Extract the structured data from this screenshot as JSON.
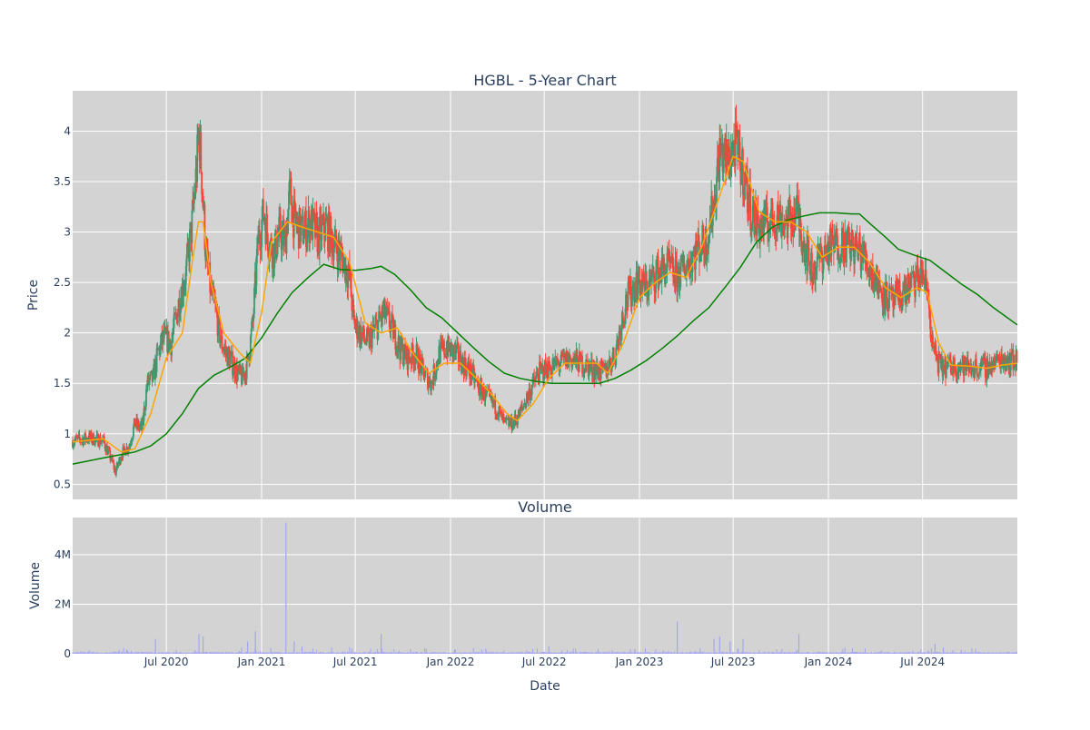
{
  "chart_data": [
    {
      "type": "candlestick",
      "title": "HGBL - 5-Year Chart",
      "xlabel": "",
      "ylabel": "Price",
      "ylim": [
        0.35,
        4.4
      ],
      "x_range": [
        "2020-01-02",
        "2024-12-31"
      ],
      "y_ticks": [
        "0.5",
        "1",
        "1.5",
        "2",
        "2.5",
        "3",
        "3.5",
        "4"
      ],
      "y_tick_values": [
        0.5,
        1,
        1.5,
        2,
        2.5,
        3,
        3.5,
        4
      ],
      "grid": true,
      "legend": "none",
      "colors": {
        "plot_bg": "#d3d3d3",
        "up": "#3d9970",
        "down": "#ff4136",
        "ma_short": "#ffa500",
        "ma_long": "#008000",
        "grid": "#ffffff"
      },
      "close_path": [
        [
          "2020-01-02",
          0.93
        ],
        [
          "2020-02-01",
          0.96
        ],
        [
          "2020-03-01",
          0.93
        ],
        [
          "2020-03-16",
          0.75
        ],
        [
          "2020-03-25",
          0.62
        ],
        [
          "2020-04-05",
          0.8
        ],
        [
          "2020-04-20",
          0.88
        ],
        [
          "2020-05-01",
          1.1
        ],
        [
          "2020-05-15",
          1.05
        ],
        [
          "2020-05-25",
          1.5
        ],
        [
          "2020-06-05",
          1.55
        ],
        [
          "2020-06-15",
          1.8
        ],
        [
          "2020-06-25",
          1.95
        ],
        [
          "2020-07-10",
          1.9
        ],
        [
          "2020-07-25",
          2.3
        ],
        [
          "2020-08-08",
          2.6
        ],
        [
          "2020-08-20",
          3.1
        ],
        [
          "2020-08-28",
          3.6
        ],
        [
          "2020-09-02",
          4.0
        ],
        [
          "2020-09-08",
          3.5
        ],
        [
          "2020-09-15",
          2.8
        ],
        [
          "2020-09-25",
          2.4
        ],
        [
          "2020-10-05",
          2.2
        ],
        [
          "2020-10-15",
          1.9
        ],
        [
          "2020-10-25",
          1.8
        ],
        [
          "2020-11-05",
          1.7
        ],
        [
          "2020-11-15",
          1.6
        ],
        [
          "2020-11-25",
          1.55
        ],
        [
          "2020-12-05",
          1.7
        ],
        [
          "2020-12-15",
          2.1
        ],
        [
          "2020-12-25",
          2.9
        ],
        [
          "2021-01-05",
          3.2
        ],
        [
          "2021-01-15",
          2.9
        ],
        [
          "2021-01-25",
          2.8
        ],
        [
          "2021-02-05",
          3.0
        ],
        [
          "2021-02-15",
          2.9
        ],
        [
          "2021-02-25",
          3.4
        ],
        [
          "2021-03-05",
          3.1
        ],
        [
          "2021-03-20",
          3.0
        ],
        [
          "2021-04-05",
          3.1
        ],
        [
          "2021-04-20",
          2.95
        ],
        [
          "2021-05-05",
          3.05
        ],
        [
          "2021-05-20",
          2.9
        ],
        [
          "2021-06-05",
          2.75
        ],
        [
          "2021-06-20",
          2.55
        ],
        [
          "2021-06-28",
          2.1
        ],
        [
          "2021-07-10",
          2.0
        ],
        [
          "2021-07-25",
          1.9
        ],
        [
          "2021-08-10",
          2.05
        ],
        [
          "2021-08-25",
          2.2
        ],
        [
          "2021-09-10",
          2.05
        ],
        [
          "2021-09-25",
          1.85
        ],
        [
          "2021-10-10",
          1.75
        ],
        [
          "2021-10-25",
          1.8
        ],
        [
          "2021-11-10",
          1.6
        ],
        [
          "2021-11-25",
          1.5
        ],
        [
          "2021-12-10",
          1.8
        ],
        [
          "2021-12-25",
          1.85
        ],
        [
          "2022-01-10",
          1.8
        ],
        [
          "2022-01-25",
          1.7
        ],
        [
          "2022-02-10",
          1.6
        ],
        [
          "2022-02-25",
          1.45
        ],
        [
          "2022-03-15",
          1.35
        ],
        [
          "2022-04-01",
          1.25
        ],
        [
          "2022-04-15",
          1.1
        ],
        [
          "2022-05-01",
          1.1
        ],
        [
          "2022-05-15",
          1.2
        ],
        [
          "2022-06-01",
          1.4
        ],
        [
          "2022-06-20",
          1.6
        ],
        [
          "2022-07-10",
          1.65
        ],
        [
          "2022-08-01",
          1.7
        ],
        [
          "2022-08-20",
          1.75
        ],
        [
          "2022-09-10",
          1.7
        ],
        [
          "2022-10-01",
          1.65
        ],
        [
          "2022-10-25",
          1.6
        ],
        [
          "2022-11-15",
          1.8
        ],
        [
          "2022-12-05",
          2.3
        ],
        [
          "2022-12-25",
          2.5
        ],
        [
          "2023-01-15",
          2.45
        ],
        [
          "2023-02-05",
          2.6
        ],
        [
          "2023-02-25",
          2.65
        ],
        [
          "2023-03-15",
          2.55
        ],
        [
          "2023-04-05",
          2.7
        ],
        [
          "2023-04-25",
          2.85
        ],
        [
          "2023-05-10",
          2.9
        ],
        [
          "2023-05-25",
          3.3
        ],
        [
          "2023-06-05",
          3.8
        ],
        [
          "2023-06-20",
          3.7
        ],
        [
          "2023-07-05",
          3.85
        ],
        [
          "2023-07-20",
          3.6
        ],
        [
          "2023-08-05",
          3.2
        ],
        [
          "2023-08-20",
          3.05
        ],
        [
          "2023-09-05",
          3.1
        ],
        [
          "2023-09-25",
          3.15
        ],
        [
          "2023-10-15",
          3.1
        ],
        [
          "2023-11-01",
          3.2
        ],
        [
          "2023-11-15",
          2.9
        ],
        [
          "2023-12-01",
          2.6
        ],
        [
          "2023-12-15",
          2.75
        ],
        [
          "2024-01-05",
          2.85
        ],
        [
          "2024-01-25",
          2.9
        ],
        [
          "2024-02-15",
          2.85
        ],
        [
          "2024-03-05",
          2.8
        ],
        [
          "2024-03-25",
          2.6
        ],
        [
          "2024-04-15",
          2.4
        ],
        [
          "2024-05-05",
          2.3
        ],
        [
          "2024-05-25",
          2.4
        ],
        [
          "2024-06-15",
          2.5
        ],
        [
          "2024-07-01",
          2.6
        ],
        [
          "2024-07-12",
          2.35
        ],
        [
          "2024-07-20",
          1.85
        ],
        [
          "2024-08-05",
          1.65
        ],
        [
          "2024-09-01",
          1.68
        ],
        [
          "2024-10-01",
          1.66
        ],
        [
          "2024-11-01",
          1.65
        ],
        [
          "2024-12-01",
          1.75
        ],
        [
          "2024-12-31",
          1.72
        ]
      ],
      "ma_short_path": [
        [
          "2020-01-02",
          0.92
        ],
        [
          "2020-03-01",
          0.95
        ],
        [
          "2020-04-05",
          0.82
        ],
        [
          "2020-05-01",
          0.85
        ],
        [
          "2020-06-01",
          1.2
        ],
        [
          "2020-07-01",
          1.75
        ],
        [
          "2020-08-01",
          2.0
        ],
        [
          "2020-08-20",
          2.7
        ],
        [
          "2020-09-01",
          3.1
        ],
        [
          "2020-09-10",
          3.1
        ],
        [
          "2020-09-25",
          2.5
        ],
        [
          "2020-10-20",
          2.0
        ],
        [
          "2020-11-20",
          1.8
        ],
        [
          "2020-12-10",
          1.7
        ],
        [
          "2021-01-01",
          2.2
        ],
        [
          "2021-01-20",
          2.9
        ],
        [
          "2021-02-20",
          3.1
        ],
        [
          "2021-03-20",
          3.05
        ],
        [
          "2021-04-20",
          3.0
        ],
        [
          "2021-05-20",
          2.95
        ],
        [
          "2021-06-20",
          2.7
        ],
        [
          "2021-07-20",
          2.1
        ],
        [
          "2021-08-20",
          2.0
        ],
        [
          "2021-09-20",
          2.05
        ],
        [
          "2021-10-20",
          1.8
        ],
        [
          "2021-11-20",
          1.6
        ],
        [
          "2021-12-20",
          1.7
        ],
        [
          "2022-01-20",
          1.7
        ],
        [
          "2022-02-20",
          1.55
        ],
        [
          "2022-03-20",
          1.4
        ],
        [
          "2022-04-20",
          1.2
        ],
        [
          "2022-05-10",
          1.13
        ],
        [
          "2022-06-10",
          1.3
        ],
        [
          "2022-07-10",
          1.55
        ],
        [
          "2022-08-10",
          1.7
        ],
        [
          "2022-09-10",
          1.7
        ],
        [
          "2022-10-10",
          1.7
        ],
        [
          "2022-11-01",
          1.6
        ],
        [
          "2022-12-01",
          1.9
        ],
        [
          "2023-01-01",
          2.35
        ],
        [
          "2023-02-01",
          2.5
        ],
        [
          "2023-03-01",
          2.6
        ],
        [
          "2023-04-01",
          2.55
        ],
        [
          "2023-05-01",
          2.85
        ],
        [
          "2023-06-01",
          3.3
        ],
        [
          "2023-07-01",
          3.75
        ],
        [
          "2023-07-20",
          3.7
        ],
        [
          "2023-08-20",
          3.2
        ],
        [
          "2023-09-20",
          3.1
        ],
        [
          "2023-10-20",
          3.1
        ],
        [
          "2023-11-20",
          3.0
        ],
        [
          "2023-12-20",
          2.75
        ],
        [
          "2024-01-20",
          2.85
        ],
        [
          "2024-02-20",
          2.85
        ],
        [
          "2024-03-20",
          2.7
        ],
        [
          "2024-04-20",
          2.45
        ],
        [
          "2024-05-20",
          2.35
        ],
        [
          "2024-06-20",
          2.45
        ],
        [
          "2024-07-10",
          2.4
        ],
        [
          "2024-08-01",
          1.9
        ],
        [
          "2024-08-25",
          1.68
        ],
        [
          "2024-10-01",
          1.67
        ],
        [
          "2024-11-01",
          1.65
        ],
        [
          "2024-12-01",
          1.68
        ],
        [
          "2024-12-31",
          1.7
        ]
      ],
      "ma_long_path": [
        [
          "2020-01-02",
          0.7
        ],
        [
          "2020-03-01",
          0.76
        ],
        [
          "2020-05-01",
          0.82
        ],
        [
          "2020-06-01",
          0.88
        ],
        [
          "2020-07-01",
          1.0
        ],
        [
          "2020-08-01",
          1.2
        ],
        [
          "2020-09-01",
          1.45
        ],
        [
          "2020-10-01",
          1.58
        ],
        [
          "2020-11-01",
          1.66
        ],
        [
          "2020-12-01",
          1.75
        ],
        [
          "2021-01-01",
          1.95
        ],
        [
          "2021-02-01",
          2.2
        ],
        [
          "2021-03-01",
          2.4
        ],
        [
          "2021-04-01",
          2.55
        ],
        [
          "2021-05-01",
          2.68
        ],
        [
          "2021-06-01",
          2.63
        ],
        [
          "2021-07-01",
          2.62
        ],
        [
          "2021-08-01",
          2.64
        ],
        [
          "2021-08-20",
          2.66
        ],
        [
          "2021-09-15",
          2.58
        ],
        [
          "2021-10-15",
          2.43
        ],
        [
          "2021-11-15",
          2.25
        ],
        [
          "2021-12-15",
          2.15
        ],
        [
          "2022-01-15",
          2.0
        ],
        [
          "2022-02-15",
          1.85
        ],
        [
          "2022-03-15",
          1.72
        ],
        [
          "2022-04-15",
          1.6
        ],
        [
          "2022-05-15",
          1.55
        ],
        [
          "2022-06-15",
          1.52
        ],
        [
          "2022-07-15",
          1.5
        ],
        [
          "2022-08-15",
          1.5
        ],
        [
          "2022-09-15",
          1.5
        ],
        [
          "2022-10-15",
          1.5
        ],
        [
          "2022-11-15",
          1.55
        ],
        [
          "2022-12-15",
          1.63
        ],
        [
          "2023-01-15",
          1.73
        ],
        [
          "2023-02-15",
          1.85
        ],
        [
          "2023-03-15",
          1.97
        ],
        [
          "2023-04-15",
          2.12
        ],
        [
          "2023-05-15",
          2.25
        ],
        [
          "2023-06-15",
          2.45
        ],
        [
          "2023-07-15",
          2.65
        ],
        [
          "2023-08-15",
          2.9
        ],
        [
          "2023-09-15",
          3.05
        ],
        [
          "2023-10-15",
          3.12
        ],
        [
          "2023-11-15",
          3.16
        ],
        [
          "2023-12-15",
          3.19
        ],
        [
          "2024-01-15",
          3.19
        ],
        [
          "2024-02-15",
          3.18
        ],
        [
          "2024-03-01",
          3.18
        ],
        [
          "2024-03-20",
          3.09
        ],
        [
          "2024-04-20",
          2.95
        ],
        [
          "2024-05-15",
          2.83
        ],
        [
          "2024-06-15",
          2.77
        ],
        [
          "2024-07-15",
          2.72
        ],
        [
          "2024-08-15",
          2.6
        ],
        [
          "2024-09-15",
          2.48
        ],
        [
          "2024-10-15",
          2.38
        ],
        [
          "2024-11-15",
          2.25
        ],
        [
          "2024-12-31",
          2.08
        ]
      ]
    },
    {
      "type": "bar",
      "title": "Volume",
      "xlabel": "Date",
      "ylabel": "Volume",
      "ylim": [
        0,
        5500000
      ],
      "y_ticks": [
        "0",
        "2M",
        "4M"
      ],
      "y_tick_values": [
        0,
        2000000,
        4000000
      ],
      "x_ticks": [
        "Jul 2020",
        "Jan 2021",
        "Jul 2021",
        "Jan 2022",
        "Jul 2022",
        "Jan 2023",
        "Jul 2023",
        "Jan 2024",
        "Jul 2024"
      ],
      "x_tick_dates": [
        "2020-07-01",
        "2021-01-01",
        "2021-07-01",
        "2022-01-01",
        "2022-07-01",
        "2023-01-01",
        "2023-07-01",
        "2024-01-01",
        "2024-07-01"
      ],
      "grid": true,
      "legend": "none",
      "colors": {
        "plot_bg": "#d3d3d3",
        "bar": "#a5a5f0",
        "grid": "#ffffff"
      },
      "spikes": [
        [
          "2020-06-10",
          600000
        ],
        [
          "2020-09-02",
          800000
        ],
        [
          "2020-09-10",
          700000
        ],
        [
          "2020-12-05",
          500000
        ],
        [
          "2020-12-20",
          900000
        ],
        [
          "2021-02-17",
          5300000
        ],
        [
          "2021-03-05",
          500000
        ],
        [
          "2021-03-20",
          300000
        ],
        [
          "2021-08-20",
          800000
        ],
        [
          "2021-11-15",
          200000
        ],
        [
          "2022-03-10",
          200000
        ],
        [
          "2022-07-10",
          300000
        ],
        [
          "2023-03-15",
          1300000
        ],
        [
          "2023-05-25",
          600000
        ],
        [
          "2023-06-05",
          700000
        ],
        [
          "2023-06-25",
          500000
        ],
        [
          "2023-07-20",
          600000
        ],
        [
          "2023-11-05",
          800000
        ],
        [
          "2024-07-25",
          400000
        ],
        [
          "2024-08-10",
          250000
        ]
      ]
    }
  ]
}
